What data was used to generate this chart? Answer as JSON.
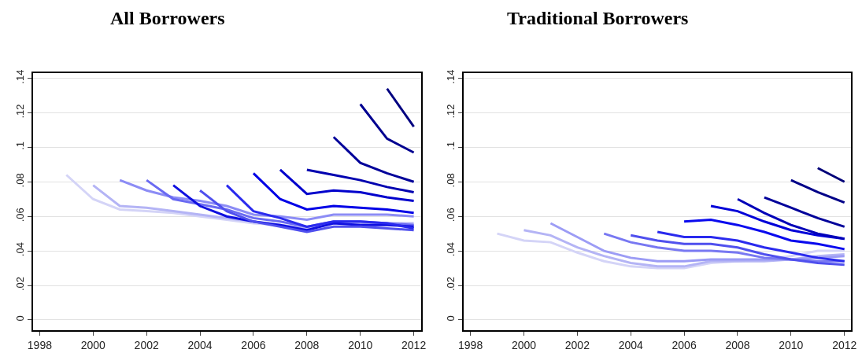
{
  "chart_data": [
    {
      "type": "line",
      "title": "All Borrowers",
      "grid": "y",
      "marker": "none",
      "line_style": "solid",
      "xlim": [
        1997.74,
        2012.28
      ],
      "xticks": [
        1998,
        2000,
        2002,
        2004,
        2006,
        2008,
        2010,
        2012
      ],
      "ylim": [
        -0.006,
        0.143
      ],
      "yticks": [
        0,
        {
          "value": 0.02,
          "label": ".02"
        },
        {
          "value": 0.04,
          "label": ".04"
        },
        {
          "value": 0.06,
          "label": ".06"
        },
        {
          "value": 0.08,
          "label": ".08"
        },
        {
          "value": 0.1,
          "label": ".1"
        },
        {
          "value": 0.12,
          "label": ".12"
        },
        {
          "value": 0.14,
          "label": ".14"
        }
      ],
      "series": [
        {
          "color": "#d4d4f7",
          "x": [
            1999,
            2000,
            2001,
            2002,
            2003,
            2004,
            2005,
            2006,
            2007,
            2008,
            2009,
            2010,
            2011,
            2012
          ],
          "values": [
            0.084,
            0.07,
            0.064,
            0.063,
            0.062,
            0.06,
            0.058,
            0.056,
            0.055,
            0.053,
            0.056,
            0.056,
            0.055,
            0.055
          ]
        },
        {
          "color": "#b4b4f5",
          "x": [
            2000,
            2001,
            2002,
            2003,
            2004,
            2005,
            2006,
            2007,
            2008,
            2009,
            2010,
            2011,
            2012
          ],
          "values": [
            0.078,
            0.066,
            0.065,
            0.063,
            0.061,
            0.059,
            0.057,
            0.055,
            0.053,
            0.056,
            0.056,
            0.056,
            0.056
          ]
        },
        {
          "color": "#8c8cf5",
          "x": [
            2001,
            2002,
            2003,
            2004,
            2005,
            2006,
            2007,
            2008,
            2009,
            2010,
            2011,
            2012
          ],
          "values": [
            0.081,
            0.075,
            0.071,
            0.069,
            0.066,
            0.061,
            0.06,
            0.058,
            0.061,
            0.061,
            0.061,
            0.06
          ]
        },
        {
          "color": "#6a6af2",
          "x": [
            2002,
            2003,
            2004,
            2005,
            2006,
            2007,
            2008,
            2009,
            2010,
            2011,
            2012
          ],
          "values": [
            0.081,
            0.07,
            0.067,
            0.064,
            0.059,
            0.057,
            0.054,
            0.057,
            0.057,
            0.056,
            0.055
          ]
        },
        {
          "color": "#1010e0",
          "x": [
            2003,
            2004,
            2005,
            2006,
            2007,
            2008,
            2009,
            2010,
            2011,
            2012
          ],
          "values": [
            0.078,
            0.066,
            0.06,
            0.057,
            0.055,
            0.052,
            0.056,
            0.055,
            0.055,
            0.054
          ]
        },
        {
          "color": "#5050ee",
          "x": [
            2004,
            2005,
            2006,
            2007,
            2008,
            2009,
            2010,
            2011,
            2012
          ],
          "values": [
            0.075,
            0.063,
            0.057,
            0.054,
            0.051,
            0.054,
            0.054,
            0.053,
            0.052
          ]
        },
        {
          "color": "#2a2aee",
          "x": [
            2005,
            2006,
            2007,
            2008,
            2009,
            2010,
            2011,
            2012
          ],
          "values": [
            0.078,
            0.063,
            0.059,
            0.054,
            0.057,
            0.057,
            0.056,
            0.053
          ]
        },
        {
          "color": "#0000e6",
          "x": [
            2006,
            2007,
            2008,
            2009,
            2010,
            2011,
            2012
          ],
          "values": [
            0.085,
            0.07,
            0.064,
            0.066,
            0.065,
            0.064,
            0.062
          ]
        },
        {
          "color": "#0000cc",
          "x": [
            2007,
            2008,
            2009,
            2010,
            2011,
            2012
          ],
          "values": [
            0.087,
            0.073,
            0.075,
            0.074,
            0.071,
            0.069
          ]
        },
        {
          "color": "#0000b0",
          "x": [
            2008,
            2009,
            2010,
            2011,
            2012
          ],
          "values": [
            0.087,
            0.084,
            0.081,
            0.077,
            0.074
          ]
        },
        {
          "color": "#00009a",
          "x": [
            2009,
            2010,
            2011,
            2012
          ],
          "values": [
            0.106,
            0.091,
            0.085,
            0.08
          ]
        },
        {
          "color": "#000090",
          "x": [
            2010,
            2011,
            2012
          ],
          "values": [
            0.125,
            0.105,
            0.097
          ]
        },
        {
          "color": "#000080",
          "x": [
            2011,
            2012
          ],
          "values": [
            0.134,
            0.112
          ]
        }
      ]
    },
    {
      "type": "line",
      "title": "Traditional Borrowers",
      "grid": "y",
      "marker": "none",
      "line_style": "solid",
      "xlim": [
        1997.75,
        2012.23
      ],
      "xticks": [
        1998,
        2000,
        2002,
        2004,
        2006,
        2008,
        2010,
        2012
      ],
      "ylim": [
        -0.006,
        0.143
      ],
      "yticks": [
        0,
        {
          "value": 0.02,
          "label": ".02"
        },
        {
          "value": 0.04,
          "label": ".04"
        },
        {
          "value": 0.06,
          "label": ".06"
        },
        {
          "value": 0.08,
          "label": ".08"
        },
        {
          "value": 0.1,
          "label": ".1"
        },
        {
          "value": 0.12,
          "label": ".12"
        },
        {
          "value": 0.14,
          "label": ".14"
        }
      ],
      "series": [
        {
          "color": "#d4d4f7",
          "x": [
            1999,
            2000,
            2001,
            2002,
            2003,
            2004,
            2005,
            2006,
            2007,
            2008,
            2009,
            2010,
            2011,
            2012
          ],
          "values": [
            0.05,
            0.046,
            0.045,
            0.039,
            0.034,
            0.031,
            0.03,
            0.03,
            0.033,
            0.034,
            0.035,
            0.037,
            0.04,
            0.04
          ]
        },
        {
          "color": "#b4b4f5",
          "x": [
            2000,
            2001,
            2002,
            2003,
            2004,
            2005,
            2006,
            2007,
            2008,
            2009,
            2010,
            2011,
            2012
          ],
          "values": [
            0.052,
            0.049,
            0.042,
            0.037,
            0.033,
            0.031,
            0.031,
            0.034,
            0.034,
            0.034,
            0.035,
            0.037,
            0.038
          ]
        },
        {
          "color": "#9c9cf5",
          "x": [
            2001,
            2002,
            2003,
            2004,
            2005,
            2006,
            2007,
            2008,
            2009,
            2010,
            2011,
            2012
          ],
          "values": [
            0.056,
            0.048,
            0.04,
            0.036,
            0.034,
            0.034,
            0.035,
            0.035,
            0.035,
            0.035,
            0.036,
            0.037
          ]
        },
        {
          "color": "#7878f2",
          "x": [
            2003,
            2004,
            2005,
            2006,
            2007,
            2008,
            2009,
            2010,
            2011,
            2012
          ],
          "values": [
            0.05,
            0.045,
            0.042,
            0.04,
            0.04,
            0.039,
            0.036,
            0.035,
            0.034,
            0.034
          ]
        },
        {
          "color": "#5050ee",
          "x": [
            2004,
            2005,
            2006,
            2007,
            2008,
            2009,
            2010,
            2011,
            2012
          ],
          "values": [
            0.049,
            0.046,
            0.044,
            0.044,
            0.042,
            0.038,
            0.035,
            0.033,
            0.032
          ]
        },
        {
          "color": "#2a2aee",
          "x": [
            2005,
            2006,
            2007,
            2008,
            2009,
            2010,
            2011,
            2012
          ],
          "values": [
            0.051,
            0.048,
            0.048,
            0.046,
            0.042,
            0.039,
            0.036,
            0.034
          ]
        },
        {
          "color": "#0a0aee",
          "x": [
            2006,
            2007,
            2008,
            2009,
            2010,
            2011,
            2012
          ],
          "values": [
            0.057,
            0.058,
            0.055,
            0.051,
            0.046,
            0.044,
            0.041
          ]
        },
        {
          "color": "#0000d8",
          "x": [
            2007,
            2008,
            2009,
            2010,
            2011,
            2012
          ],
          "values": [
            0.066,
            0.063,
            0.057,
            0.052,
            0.049,
            0.047
          ]
        },
        {
          "color": "#0000b8",
          "x": [
            2008,
            2009,
            2010,
            2011,
            2012
          ],
          "values": [
            0.07,
            0.062,
            0.055,
            0.05,
            0.047
          ]
        },
        {
          "color": "#00009a",
          "x": [
            2009,
            2010,
            2011,
            2012
          ],
          "values": [
            0.071,
            0.065,
            0.059,
            0.054
          ]
        },
        {
          "color": "#000088",
          "x": [
            2010,
            2011,
            2012
          ],
          "values": [
            0.081,
            0.074,
            0.068
          ]
        },
        {
          "color": "#000078",
          "x": [
            2011,
            2012
          ],
          "values": [
            0.088,
            0.08
          ]
        }
      ]
    }
  ]
}
